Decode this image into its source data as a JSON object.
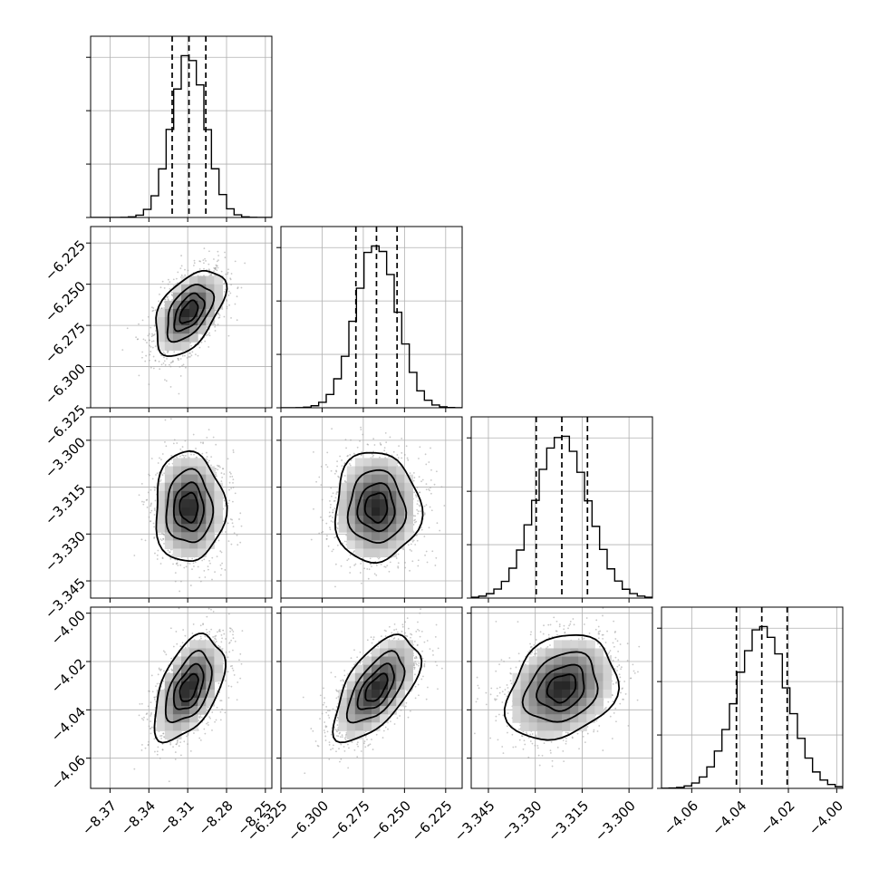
{
  "chart_data": {
    "type": "corner",
    "title": "",
    "parameters": [
      {
        "mean": -8.309,
        "std": 0.013,
        "q16": -8.322,
        "q50": -8.309,
        "q84": -8.296,
        "range": [
          -8.385,
          -8.245
        ],
        "ticks": [
          -8.37,
          -8.34,
          -8.31,
          -8.28,
          -8.25
        ],
        "tick_labels": [
          "−8.37",
          "−8.34",
          "−8.31",
          "−8.28",
          "−8.25"
        ]
      },
      {
        "mean": -6.267,
        "std": 0.0125,
        "q16": -6.2795,
        "q50": -6.267,
        "q84": -6.2545,
        "range": [
          -6.325,
          -6.215
        ],
        "ticks": [
          -6.325,
          -6.3,
          -6.275,
          -6.25,
          -6.225
        ],
        "tick_labels": [
          "−6.325",
          "−6.300",
          "−6.275",
          "−6.250",
          "−6.225"
        ]
      },
      {
        "mean": -3.3215,
        "std": 0.0085,
        "q16": -3.3297,
        "q50": -3.3215,
        "q84": -3.3133,
        "range": [
          -3.3505,
          -3.2925
        ],
        "ticks": [
          -3.345,
          -3.33,
          -3.315,
          -3.3
        ],
        "tick_labels": [
          "−3.345",
          "−3.330",
          "−3.315",
          "−3.300"
        ]
      },
      {
        "mean": -4.031,
        "std": 0.0105,
        "q16": -4.0415,
        "q50": -4.031,
        "q84": -4.0205,
        "range": [
          -4.0725,
          -3.9975
        ],
        "ticks": [
          -4.06,
          -4.04,
          -4.02,
          -4.0
        ],
        "tick_labels": [
          "−4.06",
          "−4.04",
          "−4.02",
          "−4.00"
        ]
      }
    ],
    "correlations": [
      [
        1.0,
        0.5,
        0.0,
        0.5
      ],
      [
        0.5,
        1.0,
        0.0,
        0.6
      ],
      [
        0.0,
        0.0,
        1.0,
        0.25
      ],
      [
        0.5,
        0.6,
        0.25,
        1.0
      ]
    ],
    "contour_levels_sigma": [
      0.5,
      1.0,
      1.5,
      2.0
    ],
    "n_scatter_points": 1400,
    "grid": true,
    "quantile_line_style": "dashed",
    "colors": {
      "contour": "#000000",
      "scatter": "#9a9a9a",
      "grid": "#b0b0b0",
      "density_dark": "#2a2a2a"
    }
  }
}
